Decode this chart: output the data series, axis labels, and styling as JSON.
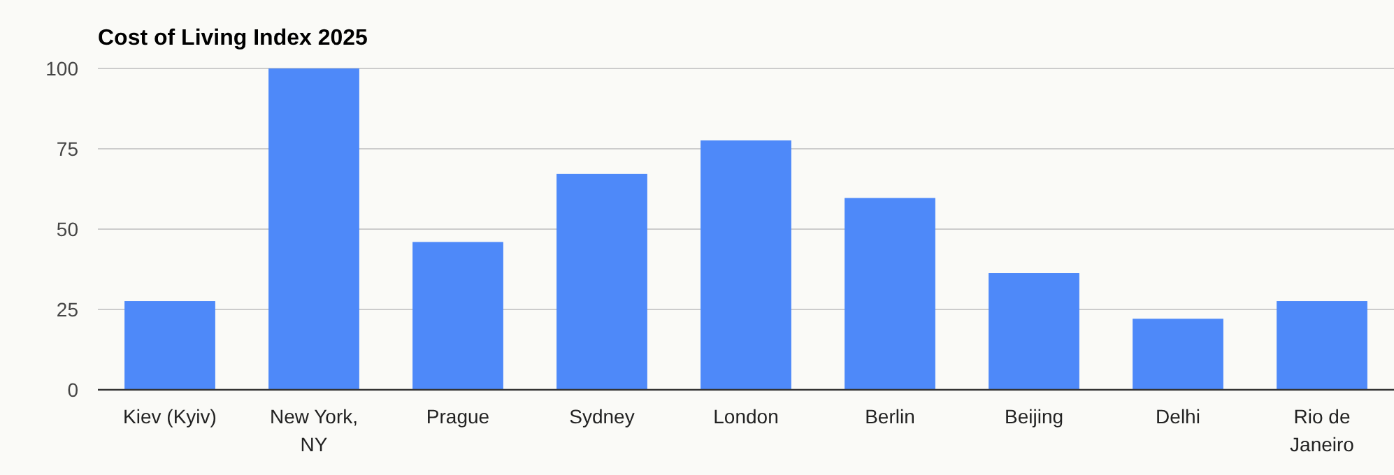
{
  "chart_data": {
    "type": "bar",
    "title": "Cost of Living Index 2025",
    "categories": [
      "Kiev (Kyiv)",
      "New York, NY",
      "Prague",
      "Sydney",
      "London",
      "Berlin",
      "Beijing",
      "Delhi",
      "Rio de Janeiro"
    ],
    "values": [
      27.6,
      100,
      46.0,
      67.2,
      77.6,
      59.7,
      36.3,
      22.1,
      27.6
    ],
    "color": "#4e89f9",
    "ylim": [
      0,
      100
    ],
    "yticks": [
      0,
      25,
      50,
      75,
      100
    ],
    "grid": "y"
  }
}
